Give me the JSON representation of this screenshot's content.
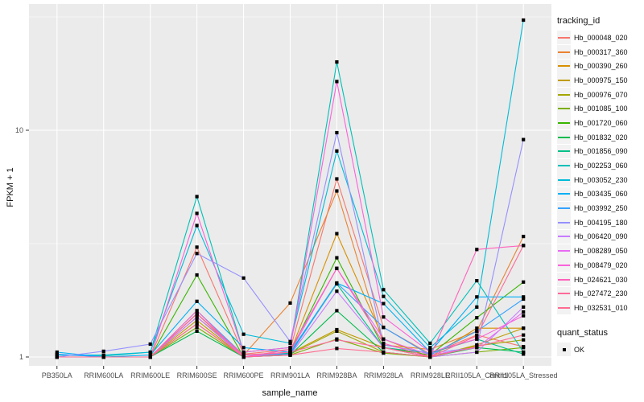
{
  "figure": {
    "bg": "#FFFFFF",
    "panel_bg": "#EBEBEB",
    "grid_color": "#FFFFFF",
    "tick_color": "#333333",
    "tick_label_color": "#4D4D4D"
  },
  "axes": {
    "x_title": "sample_name",
    "y_title": "FPKM + 1"
  },
  "legend": {
    "tracking_title": "tracking_id",
    "quant_title": "quant_status",
    "quant_items": [
      {
        "label": "OK",
        "marker": "black-square"
      }
    ]
  },
  "chart_data": {
    "type": "line",
    "title": "",
    "xlabel": "sample_name",
    "ylabel": "FPKM + 1",
    "y_scale": "log10",
    "y_ticks": [
      1,
      10
    ],
    "y_tick_labels": [
      "1",
      "10"
    ],
    "y_minor_ticks": [
      3.162,
      31.62
    ],
    "ylim": [
      0.94,
      36
    ],
    "grid": true,
    "legend_position": "right",
    "point_shape": "filled-square",
    "point_color": "#000000",
    "quant_status": "OK",
    "categories": [
      "PB350LA",
      "RRIM600LA",
      "RRIM600LE",
      "RRIM600SE",
      "RRIM600PE",
      "RRIM901LA",
      "RRIM928BA",
      "RRIM928LA",
      "RRIM928LE",
      "RRII105LA_Control",
      "RRII105LA_Stressed"
    ],
    "series": [
      {
        "name": "Hb_000048_020",
        "color": "#F8766D",
        "values": [
          1.0,
          1.0,
          1.0,
          3.05,
          1.03,
          1.08,
          6.1,
          1.35,
          1.03,
          1.25,
          1.11
        ]
      },
      {
        "name": "Hb_000317_360",
        "color": "#EA8331",
        "values": [
          1.0,
          1.0,
          1.0,
          1.55,
          1.02,
          1.73,
          5.4,
          1.13,
          1.08,
          1.3,
          3.4
        ]
      },
      {
        "name": "Hb_000390_260",
        "color": "#D89000",
        "values": [
          1.0,
          1.0,
          1.0,
          1.5,
          1.02,
          1.05,
          3.5,
          1.2,
          1.0,
          1.34,
          1.34
        ]
      },
      {
        "name": "Hb_000975_150",
        "color": "#C09B00",
        "values": [
          1.0,
          1.0,
          1.0,
          1.45,
          1.0,
          1.04,
          1.32,
          1.1,
          1.0,
          1.13,
          1.34
        ]
      },
      {
        "name": "Hb_000976_070",
        "color": "#A3A500",
        "values": [
          1.0,
          1.0,
          1.0,
          1.4,
          1.0,
          1.03,
          1.3,
          1.05,
          1.0,
          1.12,
          1.19
        ]
      },
      {
        "name": "Hb_001085_100",
        "color": "#7CAE00",
        "values": [
          1.0,
          1.0,
          1.0,
          1.35,
          1.0,
          1.02,
          1.2,
          1.04,
          1.0,
          1.05,
          1.1
        ]
      },
      {
        "name": "Hb_001720_060",
        "color": "#39B600",
        "values": [
          1.0,
          1.0,
          1.0,
          2.3,
          1.0,
          1.05,
          2.74,
          1.1,
          1.02,
          1.49,
          2.14
        ]
      },
      {
        "name": "Hb_001832_020",
        "color": "#00BB4E",
        "values": [
          1.0,
          1.0,
          1.0,
          1.3,
          1.0,
          1.02,
          1.6,
          1.05,
          1.0,
          1.1,
          1.05
        ]
      },
      {
        "name": "Hb_001856_090",
        "color": "#00C087",
        "values": [
          1.0,
          1.0,
          1.0,
          1.55,
          1.0,
          1.04,
          2.1,
          1.1,
          1.04,
          1.2,
          1.03
        ]
      },
      {
        "name": "Hb_002253_060",
        "color": "#00C0B8",
        "values": [
          1.02,
          1.01,
          1.05,
          5.1,
          1.05,
          1.1,
          20.0,
          1.98,
          1.15,
          2.17,
          1.05
        ]
      },
      {
        "name": "Hb_003052_230",
        "color": "#00BCD8",
        "values": [
          1.02,
          1.02,
          1.05,
          3.8,
          1.26,
          1.15,
          8.1,
          1.85,
          1.1,
          1.66,
          30.6
        ]
      },
      {
        "name": "Hb_003435_060",
        "color": "#00B0F6",
        "values": [
          1.05,
          1.0,
          1.02,
          1.76,
          1.1,
          1.05,
          2.12,
          1.72,
          1.05,
          1.84,
          1.84
        ]
      },
      {
        "name": "Hb_003992_250",
        "color": "#35A2FF",
        "values": [
          1.03,
          1.0,
          1.0,
          1.6,
          1.02,
          1.03,
          2.12,
          1.35,
          1.02,
          1.3,
          1.8
        ]
      },
      {
        "name": "Hb_004195_180",
        "color": "#9590FF",
        "values": [
          1.0,
          1.06,
          1.14,
          2.86,
          2.23,
          1.17,
          9.76,
          1.13,
          1.04,
          1.1,
          9.1
        ]
      },
      {
        "name": "Hb_006420_090",
        "color": "#C77CFF",
        "values": [
          1.0,
          1.0,
          1.0,
          1.5,
          1.0,
          1.02,
          1.95,
          1.1,
          1.0,
          1.05,
          1.66
        ]
      },
      {
        "name": "Hb_008289_050",
        "color": "#E76BF3",
        "values": [
          1.0,
          1.0,
          1.0,
          1.55,
          1.0,
          1.05,
          2.46,
          1.2,
          1.02,
          1.1,
          1.58
        ]
      },
      {
        "name": "Hb_008479_020",
        "color": "#FA62DB",
        "values": [
          1.0,
          1.0,
          1.0,
          4.3,
          1.05,
          1.1,
          16.4,
          1.5,
          1.05,
          1.2,
          1.52
        ]
      },
      {
        "name": "Hb_024621_030",
        "color": "#FF62BC",
        "values": [
          1.0,
          1.0,
          1.0,
          1.6,
          1.0,
          1.08,
          2.46,
          1.15,
          1.0,
          2.98,
          3.1
        ]
      },
      {
        "name": "Hb_027472_230",
        "color": "#FF6A98",
        "values": [
          1.0,
          1.0,
          1.0,
          1.55,
          1.02,
          1.05,
          1.19,
          1.1,
          1.0,
          1.24,
          3.1
        ]
      },
      {
        "name": "Hb_032531_010",
        "color": "#FF6C91",
        "values": [
          1.0,
          1.0,
          1.0,
          1.4,
          1.0,
          1.02,
          1.09,
          1.05,
          1.0,
          1.11,
          1.25
        ]
      }
    ]
  }
}
